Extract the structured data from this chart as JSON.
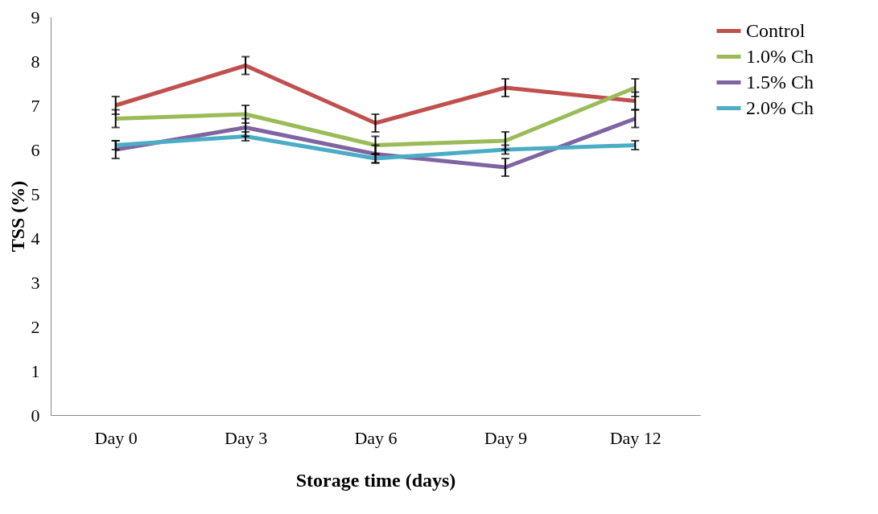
{
  "chart_data": {
    "type": "line",
    "xlabel": "Storage time (days)",
    "ylabel": "TSS (%)",
    "categories": [
      "Day 0",
      "Day 3",
      "Day 6",
      "Day 9",
      "Day 12"
    ],
    "series": [
      {
        "name": "Control",
        "color": "#c0504d",
        "values": [
          7.0,
          7.9,
          6.6,
          7.4,
          7.1
        ],
        "errors": [
          0.2,
          0.2,
          0.2,
          0.2,
          0.2
        ]
      },
      {
        "name": "1.0% Ch",
        "color": "#9bbb59",
        "values": [
          6.7,
          6.8,
          6.1,
          6.2,
          7.4
        ],
        "errors": [
          0.2,
          0.2,
          0.2,
          0.2,
          0.2
        ]
      },
      {
        "name": "1.5% Ch",
        "color": "#8064a2",
        "values": [
          6.0,
          6.5,
          5.9,
          5.6,
          6.7
        ],
        "errors": [
          0.2,
          0.2,
          0.2,
          0.2,
          0.2
        ]
      },
      {
        "name": "2.0% Ch",
        "color": "#4bacc6",
        "values": [
          6.1,
          6.3,
          5.8,
          6.0,
          6.1
        ],
        "errors": [
          0.1,
          0.1,
          0.1,
          0.1,
          0.1
        ]
      }
    ],
    "ylim": [
      0,
      9
    ],
    "yticks": [
      0,
      1,
      2,
      3,
      4,
      5,
      6,
      7,
      8,
      9
    ],
    "grid": false,
    "legend": "right",
    "marker": "none",
    "line_style": "solid"
  }
}
